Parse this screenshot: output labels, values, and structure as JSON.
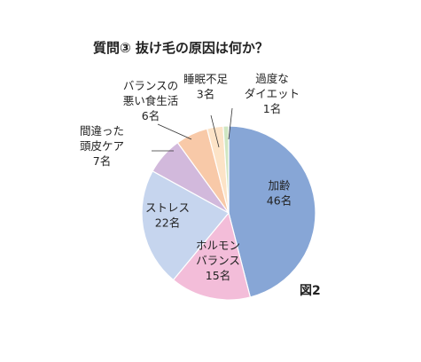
{
  "chart_data": {
    "type": "pie",
    "title": "質問③ 抜け毛の原因は何か？",
    "figure_label": "図2",
    "unit": "名",
    "slices": [
      {
        "label_lines": [
          "加齢"
        ],
        "value": 46,
        "value_text": "46名",
        "color": "#87a6d6"
      },
      {
        "label_lines": [
          "ホルモン",
          "バランス"
        ],
        "value": 15,
        "value_text": "15名",
        "color": "#f3bdd9"
      },
      {
        "label_lines": [
          "ストレス"
        ],
        "value": 22,
        "value_text": "22名",
        "color": "#c6d5ee"
      },
      {
        "label_lines": [
          "間違った",
          "頭皮ケア"
        ],
        "value": 7,
        "value_text": "7名",
        "color": "#d2b9dc"
      },
      {
        "label_lines": [
          "バランスの",
          "悪い食生活"
        ],
        "value": 6,
        "value_text": "6名",
        "color": "#f8c9a8"
      },
      {
        "label_lines": [
          "睡眠不足"
        ],
        "value": 3,
        "value_text": "3名",
        "color": "#fce3c7"
      },
      {
        "label_lines": [
          "過度な",
          "ダイエット"
        ],
        "value": 1,
        "value_text": "1名",
        "color": "#cfe6c2"
      }
    ]
  }
}
